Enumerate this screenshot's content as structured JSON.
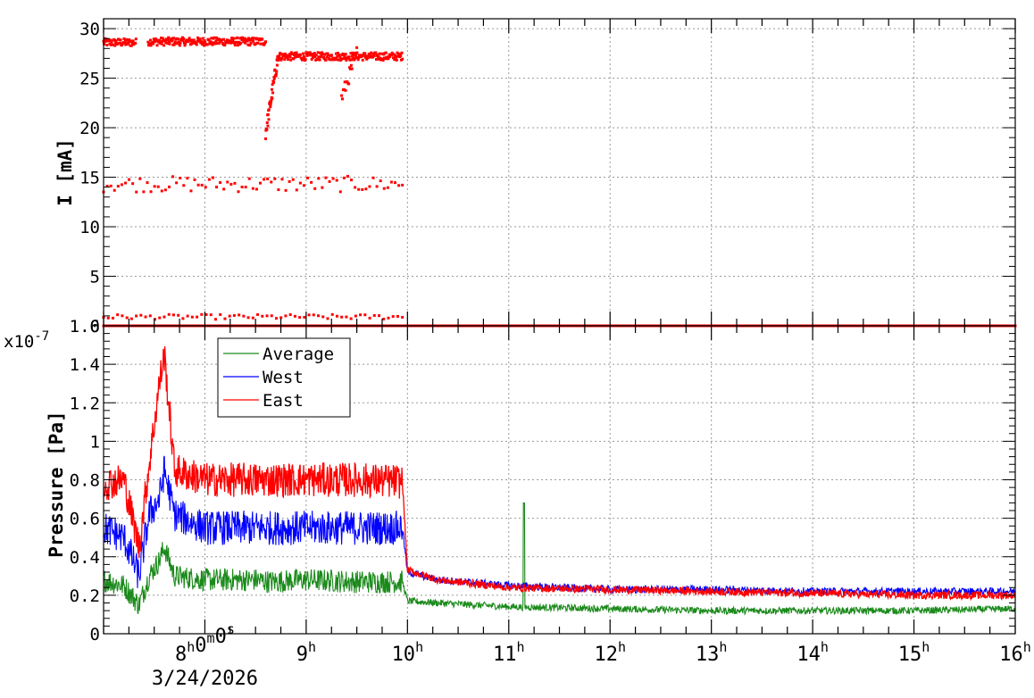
{
  "chart_data": [
    {
      "type": "scatter",
      "title": "",
      "xlabel": "",
      "ylabel": "I [mA]",
      "x_range_hours": [
        7.0,
        16.0
      ],
      "ylim": [
        0,
        31
      ],
      "yticks": [
        "0",
        "5",
        "10",
        "15",
        "20",
        "25",
        "30"
      ],
      "ytick_values": [
        0,
        5,
        10,
        15,
        20,
        25,
        30
      ],
      "grid": true,
      "color": "#ff0000",
      "series": [
        {
          "values_description": "beam current samples",
          "bands": [
            {
              "x_start": 7.0,
              "x_end": 7.32,
              "y": 28.6
            },
            {
              "x_start": 7.44,
              "x_end": 8.6,
              "y": 28.7
            },
            {
              "x_start": 8.72,
              "x_end": 9.95,
              "y": 27.2
            },
            {
              "x_start": 7.0,
              "x_end": 9.95,
              "y": 14.3
            },
            {
              "x_start": 7.0,
              "x_end": 9.95,
              "y": 0.9
            },
            {
              "x_start": 7.0,
              "x_end": 16.0,
              "y": 0.0
            }
          ]
        }
      ]
    },
    {
      "type": "line",
      "title": "",
      "xlabel": "",
      "ylabel": "Pressure [Pa]",
      "y_multiplier": "x10",
      "y_multiplier_exp": "-7",
      "ylim": [
        0,
        1.6
      ],
      "yticks": [
        "0",
        "0.2",
        "0.4",
        "0.6",
        "0.8",
        "1",
        "1.2",
        "1.4",
        "1.6"
      ],
      "ytick_values": [
        0,
        0.2,
        0.4,
        0.6,
        0.8,
        1.0,
        1.2,
        1.4,
        1.6
      ],
      "x": [
        7.0,
        7.2,
        7.35,
        7.45,
        7.55,
        7.6,
        7.7,
        8.0,
        8.5,
        8.65,
        9.0,
        9.5,
        9.95,
        10.0,
        10.3,
        11.0,
        12.0,
        13.0,
        14.0,
        15.0,
        16.0
      ],
      "series": [
        {
          "name": "Average",
          "color": "#1b8a1b",
          "values": [
            0.28,
            0.25,
            0.15,
            0.3,
            0.38,
            0.45,
            0.3,
            0.28,
            0.28,
            0.27,
            0.28,
            0.27,
            0.27,
            0.17,
            0.16,
            0.14,
            0.13,
            0.12,
            0.12,
            0.12,
            0.13
          ]
        },
        {
          "name": "West",
          "color": "#0000ff",
          "values": [
            0.55,
            0.5,
            0.3,
            0.62,
            0.7,
            0.85,
            0.62,
            0.55,
            0.55,
            0.55,
            0.55,
            0.55,
            0.55,
            0.32,
            0.28,
            0.25,
            0.23,
            0.23,
            0.22,
            0.22,
            0.22
          ]
        },
        {
          "name": "East",
          "color": "#ff0000",
          "values": [
            0.78,
            0.8,
            0.45,
            0.88,
            1.3,
            1.45,
            0.85,
            0.8,
            0.8,
            0.8,
            0.8,
            0.8,
            0.79,
            0.33,
            0.28,
            0.24,
            0.23,
            0.22,
            0.21,
            0.2,
            0.2
          ]
        }
      ],
      "spike": {
        "x": 11.15,
        "value": 0.68,
        "series": "Average"
      },
      "grid": true,
      "legend_position": "top-left"
    }
  ],
  "x_axis": {
    "tick_values": [
      8,
      9,
      10,
      11,
      12,
      13,
      14,
      15,
      16
    ],
    "tick_labels": [
      {
        "base": "8",
        "sup": "h",
        "base2": "0",
        "sup2": "m",
        "base3": "0",
        "sup3": "s"
      },
      {
        "base": "9",
        "sup": "h"
      },
      {
        "base": "10",
        "sup": "h"
      },
      {
        "base": "11",
        "sup": "h"
      },
      {
        "base": "12",
        "sup": "h"
      },
      {
        "base": "13",
        "sup": "h"
      },
      {
        "base": "14",
        "sup": "h"
      },
      {
        "base": "15",
        "sup": "h"
      },
      {
        "base": "16",
        "sup": "h"
      }
    ],
    "date_label": "3/24/2026"
  },
  "legend": {
    "items": [
      {
        "label": "Average",
        "color": "#1b8a1b"
      },
      {
        "label": "West",
        "color": "#0000ff"
      },
      {
        "label": "East",
        "color": "#ff0000"
      }
    ]
  }
}
